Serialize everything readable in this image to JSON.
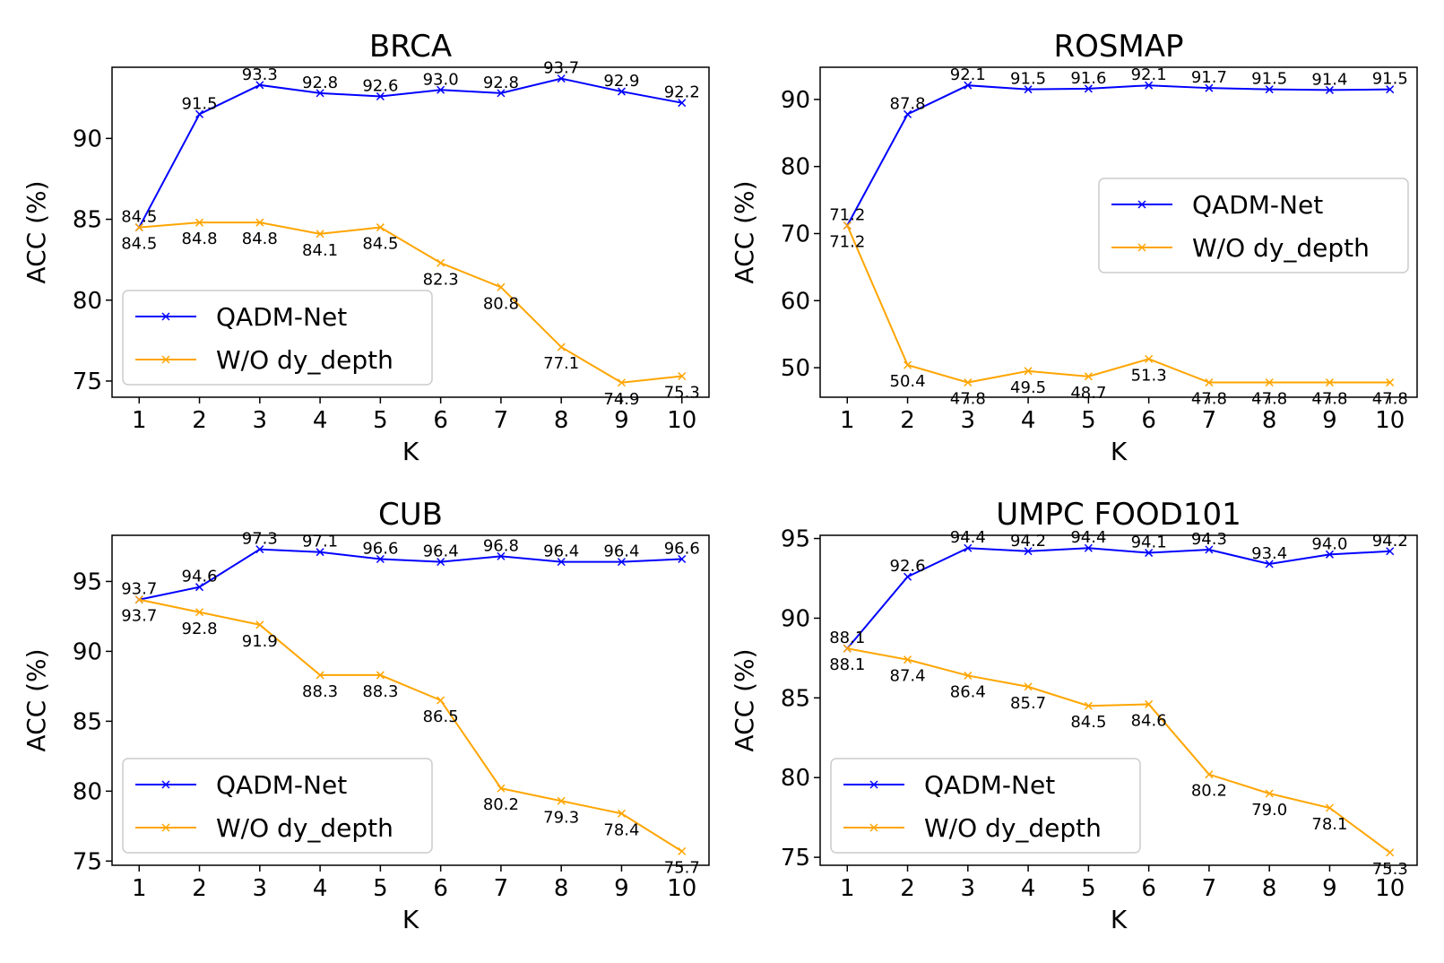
{
  "colors": {
    "series_1": "#0000ff",
    "series_2": "#ffa500",
    "axes": "#000000",
    "legend_border": "#cccccc"
  },
  "chart_data": [
    {
      "type": "line",
      "title": "BRCA",
      "xlabel": "K",
      "ylabel": "ACC (%)",
      "x": [
        1,
        2,
        3,
        4,
        5,
        6,
        7,
        8,
        9,
        10
      ],
      "ylim": [
        74,
        94.4
      ],
      "yticks": [
        75,
        80,
        85,
        90
      ],
      "legend_position": "lower-left",
      "series": [
        {
          "name": "QADM-Net",
          "values": [
            84.5,
            91.5,
            93.3,
            92.8,
            92.6,
            93.0,
            92.8,
            93.7,
            92.9,
            92.2
          ],
          "labels": [
            "84.5",
            "91.5",
            "93.3",
            "92.8",
            "92.6",
            "93.0",
            "92.8",
            "93.7",
            "92.9",
            "92.2"
          ]
        },
        {
          "name": "W/O dy_depth",
          "values": [
            84.5,
            84.8,
            84.8,
            84.1,
            84.5,
            82.3,
            80.8,
            77.1,
            74.9,
            75.3
          ],
          "labels": [
            "84.5",
            "84.8",
            "84.8",
            "84.1",
            "84.5",
            "82.3",
            "80.8",
            "77.1",
            "74.9",
            "75.3"
          ]
        }
      ]
    },
    {
      "type": "line",
      "title": "ROSMAP",
      "xlabel": "K",
      "ylabel": "ACC (%)",
      "x": [
        1,
        2,
        3,
        4,
        5,
        6,
        7,
        8,
        9,
        10
      ],
      "ylim": [
        45.6,
        94.8
      ],
      "yticks": [
        50,
        60,
        70,
        80,
        90
      ],
      "legend_position": "center-right",
      "series": [
        {
          "name": "QADM-Net",
          "values": [
            71.2,
            87.8,
            92.1,
            91.5,
            91.6,
            92.1,
            91.7,
            91.5,
            91.4,
            91.5
          ],
          "labels": [
            "71.2",
            "87.8",
            "92.1",
            "91.5",
            "91.6",
            "92.1",
            "91.7",
            "91.5",
            "91.4",
            "91.5"
          ]
        },
        {
          "name": "W/O dy_depth",
          "values": [
            71.2,
            50.4,
            47.8,
            49.5,
            48.7,
            51.3,
            47.8,
            47.8,
            47.8,
            47.8
          ],
          "labels": [
            "71.2",
            "50.4",
            "47.8",
            "49.5",
            "48.7",
            "51.3",
            "47.8",
            "47.8",
            "47.8",
            "47.8"
          ]
        }
      ]
    },
    {
      "type": "line",
      "title": "CUB",
      "xlabel": "K",
      "ylabel": "ACC (%)",
      "x": [
        1,
        2,
        3,
        4,
        5,
        6,
        7,
        8,
        9,
        10
      ],
      "ylim": [
        74.7,
        98.3
      ],
      "yticks": [
        75,
        80,
        85,
        90,
        95
      ],
      "legend_position": "lower-left",
      "series": [
        {
          "name": "QADM-Net",
          "values": [
            93.7,
            94.6,
            97.3,
            97.1,
            96.6,
            96.4,
            96.8,
            96.4,
            96.4,
            96.6
          ],
          "labels": [
            "93.7",
            "94.6",
            "97.3",
            "97.1",
            "96.6",
            "96.4",
            "96.8",
            "96.4",
            "96.4",
            "96.6"
          ]
        },
        {
          "name": "W/O dy_depth",
          "values": [
            93.7,
            92.8,
            91.9,
            88.3,
            88.3,
            86.5,
            80.2,
            79.3,
            78.4,
            75.7
          ],
          "labels": [
            "93.7",
            "92.8",
            "91.9",
            "88.3",
            "88.3",
            "86.5",
            "80.2",
            "79.3",
            "78.4",
            "75.7"
          ]
        }
      ]
    },
    {
      "type": "line",
      "title": "UMPC FOOD101",
      "xlabel": "K",
      "ylabel": "ACC (%)",
      "x": [
        1,
        2,
        3,
        4,
        5,
        6,
        7,
        8,
        9,
        10
      ],
      "ylim": [
        74.5,
        95.2
      ],
      "yticks": [
        75,
        80,
        85,
        90,
        95
      ],
      "legend_position": "lower-left",
      "series": [
        {
          "name": "QADM-Net",
          "values": [
            88.1,
            92.6,
            94.4,
            94.2,
            94.4,
            94.1,
            94.3,
            93.4,
            94.0,
            94.2
          ],
          "labels": [
            "88.1",
            "92.6",
            "94.4",
            "94.2",
            "94.4",
            "94.1",
            "94.3",
            "93.4",
            "94.0",
            "94.2"
          ]
        },
        {
          "name": "W/O dy_depth",
          "values": [
            88.1,
            87.4,
            86.4,
            85.7,
            84.5,
            84.6,
            80.2,
            79.0,
            78.1,
            75.3
          ],
          "labels": [
            "88.1",
            "87.4",
            "86.4",
            "85.7",
            "84.5",
            "84.6",
            "80.2",
            "79.0",
            "78.1",
            "75.3"
          ]
        }
      ]
    }
  ]
}
